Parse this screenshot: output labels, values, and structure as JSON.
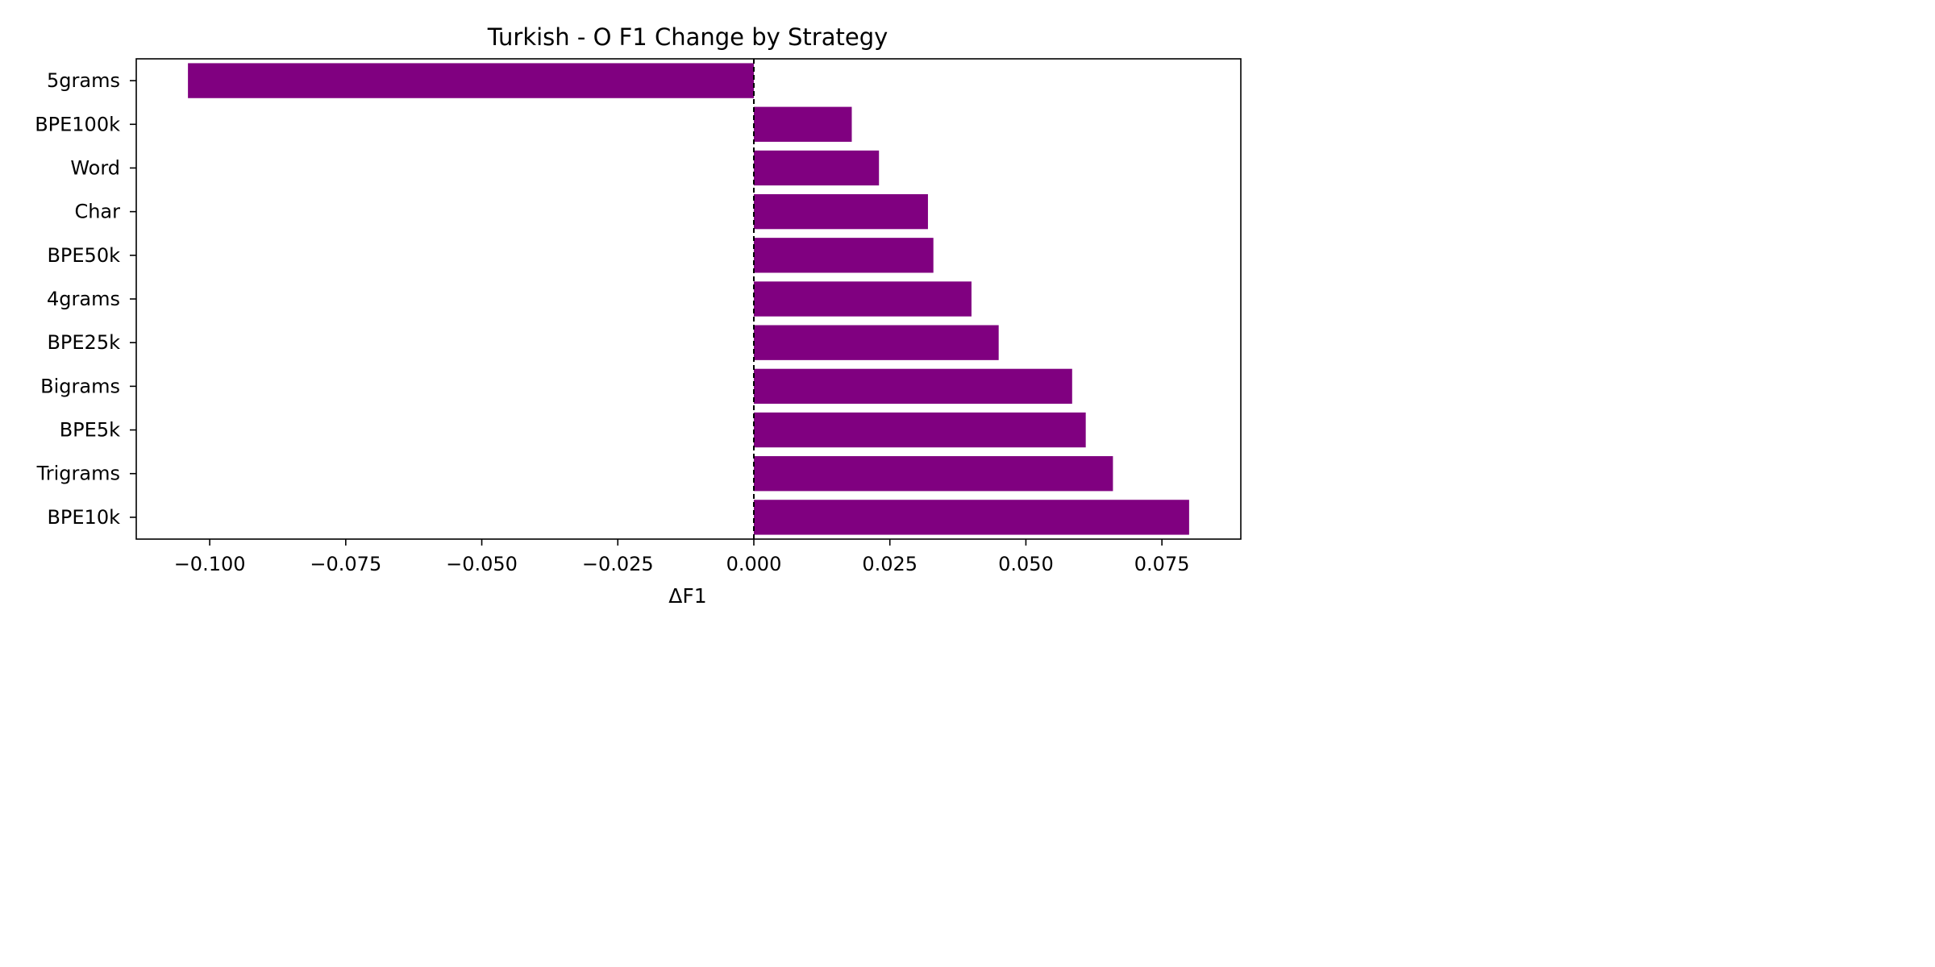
{
  "chart_data": {
    "type": "bar",
    "orientation": "horizontal",
    "title": "Turkish - O F1 Change by Strategy",
    "xlabel": "ΔF1",
    "ylabel": "",
    "categories": [
      "5grams",
      "BPE100k",
      "Word",
      "Char",
      "BPE50k",
      "4grams",
      "BPE25k",
      "Bigrams",
      "BPE5k",
      "Trigrams",
      "BPE10k"
    ],
    "values": [
      -0.104,
      0.018,
      0.023,
      0.032,
      0.033,
      0.04,
      0.045,
      0.0585,
      0.061,
      0.066,
      0.08
    ],
    "xlim": [
      -0.1135,
      0.0895
    ],
    "xticks": [
      -0.1,
      -0.075,
      -0.05,
      -0.025,
      0.0,
      0.025,
      0.05,
      0.075
    ],
    "xtick_labels": [
      "−0.100",
      "−0.075",
      "−0.050",
      "−0.025",
      "0.000",
      "0.025",
      "0.050",
      "0.075"
    ],
    "reference_line": {
      "x": 0,
      "style": "dashed",
      "color": "#000000"
    },
    "bar_color": "#800080",
    "grid": false,
    "legend": "none"
  }
}
